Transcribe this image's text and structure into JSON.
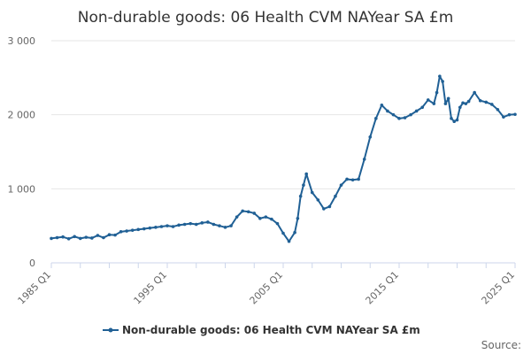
{
  "chart_data": {
    "type": "line",
    "title": "Non-durable goods: 06 Health CVM NAYear SA £m",
    "xlabel": "",
    "ylabel": "",
    "ylim": [
      0,
      3000
    ],
    "yticks": [
      0,
      1000,
      2000,
      3000
    ],
    "ytick_labels": [
      "0",
      "1 000",
      "2 000",
      "3 000"
    ],
    "x_range_years": [
      1985.0,
      2025.0
    ],
    "xtick_labels": [
      "1985 Q1",
      "1995 Q1",
      "2005 Q1",
      "2015 Q1",
      "2025 Q1"
    ],
    "xtick_years": [
      1985.0,
      1995.0,
      2005.0,
      2015.0,
      2025.0
    ],
    "series": [
      {
        "name": "Non-durable goods: 06 Health CVM NAYear SA £m",
        "color": "#206095",
        "x": [
          1985.0,
          1985.5,
          1986.0,
          1986.5,
          1987.0,
          1987.5,
          1988.0,
          1988.5,
          1989.0,
          1989.5,
          1990.0,
          1990.5,
          1991.0,
          1991.5,
          1992.0,
          1992.5,
          1993.0,
          1993.5,
          1994.0,
          1994.5,
          1995.0,
          1995.5,
          1996.0,
          1996.5,
          1997.0,
          1997.5,
          1998.0,
          1998.5,
          1999.0,
          1999.5,
          2000.0,
          2000.5,
          2001.0,
          2001.5,
          2002.0,
          2002.5,
          2003.0,
          2003.5,
          2004.0,
          2004.5,
          2005.0,
          2005.5,
          2006.0,
          2006.25,
          2006.5,
          2006.75,
          2007.0,
          2007.5,
          2008.0,
          2008.5,
          2009.0,
          2009.5,
          2010.0,
          2010.5,
          2011.0,
          2011.5,
          2012.0,
          2012.5,
          2013.0,
          2013.5,
          2014.0,
          2014.5,
          2015.0,
          2015.5,
          2016.0,
          2016.5,
          2017.0,
          2017.5,
          2018.0,
          2018.25,
          2018.5,
          2018.75,
          2019.0,
          2019.25,
          2019.5,
          2019.75,
          2020.0,
          2020.25,
          2020.5,
          2020.75,
          2021.0,
          2021.5,
          2022.0,
          2022.5,
          2023.0,
          2023.5,
          2024.0,
          2024.5,
          2025.0
        ],
        "values": [
          330,
          340,
          350,
          325,
          355,
          330,
          345,
          335,
          370,
          340,
          380,
          375,
          420,
          430,
          440,
          450,
          460,
          470,
          480,
          490,
          500,
          490,
          510,
          520,
          530,
          520,
          540,
          550,
          520,
          500,
          480,
          500,
          620,
          700,
          690,
          670,
          600,
          620,
          590,
          530,
          400,
          290,
          410,
          600,
          900,
          1050,
          1200,
          950,
          850,
          730,
          760,
          900,
          1050,
          1130,
          1120,
          1130,
          1400,
          1700,
          1950,
          2130,
          2050,
          2000,
          1950,
          1960,
          2000,
          2050,
          2100,
          2200,
          2150,
          2300,
          2520,
          2450,
          2150,
          2220,
          1950,
          1910,
          1930,
          2100,
          2160,
          2150,
          2180,
          2300,
          2190,
          2170,
          2140,
          2070,
          1970,
          2000,
          2005
        ]
      }
    ],
    "legend_position": "bottom-center"
  },
  "footer": {
    "source_label": "Source:"
  }
}
